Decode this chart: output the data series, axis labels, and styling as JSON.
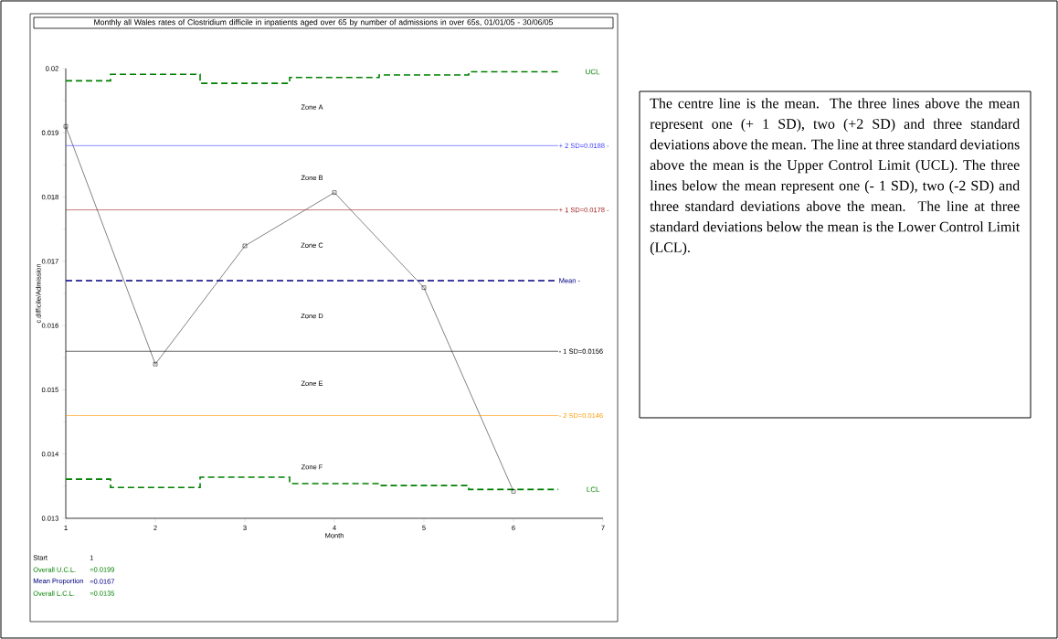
{
  "chart_data": {
    "type": "line",
    "title": "Monthly all Wales rates of Clostridium difficile in inpatients aged over 65 by number of admissions in over 65s, 01/01/05 - 30/06/05",
    "xlabel": "Month",
    "ylabel": "c.difficile/Admission",
    "x": [
      1,
      2,
      3,
      4,
      5,
      6
    ],
    "marker": "square",
    "series": [
      {
        "color": "#000000",
        "values": [
          0.0191,
          0.0154,
          0.01724,
          0.01807,
          0.01659,
          0.01342
        ]
      },
      {
        "name": "UCL",
        "type": "step",
        "color": "#008000",
        "line_style": "dashed",
        "marker": "none",
        "x": [
          1,
          1.5,
          2.5,
          3.5,
          4.5,
          5.5,
          6.5
        ],
        "values": [
          0.01981,
          0.01991,
          0.01977,
          0.01986,
          0.0199,
          0.01995,
          0.01995
        ]
      },
      {
        "name": "LCL",
        "type": "step",
        "color": "#008000",
        "line_style": "dashed",
        "marker": "none",
        "x": [
          1,
          1.5,
          2.5,
          3.5,
          4.5,
          5.5,
          6.5
        ],
        "values": [
          0.01361,
          0.01348,
          0.01364,
          0.01354,
          0.01351,
          0.01345,
          0.01345
        ]
      }
    ],
    "xlim": [
      1,
      7
    ],
    "xticks": [
      1,
      2,
      3,
      4,
      5,
      6,
      7
    ],
    "ylim": [
      0.013,
      0.02
    ],
    "yticks": [
      0.013,
      0.014,
      0.015,
      0.016,
      0.017,
      0.018,
      0.019,
      0.02
    ],
    "ref_lines": [
      {
        "axis": "y",
        "value": 0.0188,
        "label": "+ 2 SD=0.0188 -",
        "color": "#4040ff",
        "line_style": "solid"
      },
      {
        "axis": "y",
        "value": 0.0178,
        "label": "+ 1 SD=0.0178 -",
        "color": "#a02020",
        "line_style": "solid"
      },
      {
        "axis": "y",
        "value": 0.0167,
        "label": "Mean -",
        "color": "#000080",
        "line_style": "dashed"
      },
      {
        "axis": "y",
        "value": 0.0156,
        "label": "- 1 SD=0.0156",
        "color": "#000000",
        "line_style": "solid"
      },
      {
        "axis": "y",
        "value": 0.0146,
        "label": "- 2 SD=0.0146",
        "color": "#ff9900",
        "line_style": "solid"
      }
    ],
    "annotations": [
      "Zone A",
      "Zone B",
      "Zone C",
      "Zone D",
      "Zone E",
      "Zone F",
      "Start",
      "1",
      "Overall U.C.L.",
      "=0.0199",
      "Mean Proportion",
      "=0.0167",
      "Overall L.C.L.",
      "=0.0135",
      "The centre line is the mean. The three lines above the mean represent one (+ 1 SD), two (+2 SD) and three standard deviations above the mean. The line at three standard deviations above the mean is the Upper Control Limit (UCL). The three lines below the mean represent one (- 1 SD), two (-2 SD) and three standard deviations above the mean. The line at three standard deviations below the mean is the Lower Control Limit (LCL)."
    ]
  }
}
